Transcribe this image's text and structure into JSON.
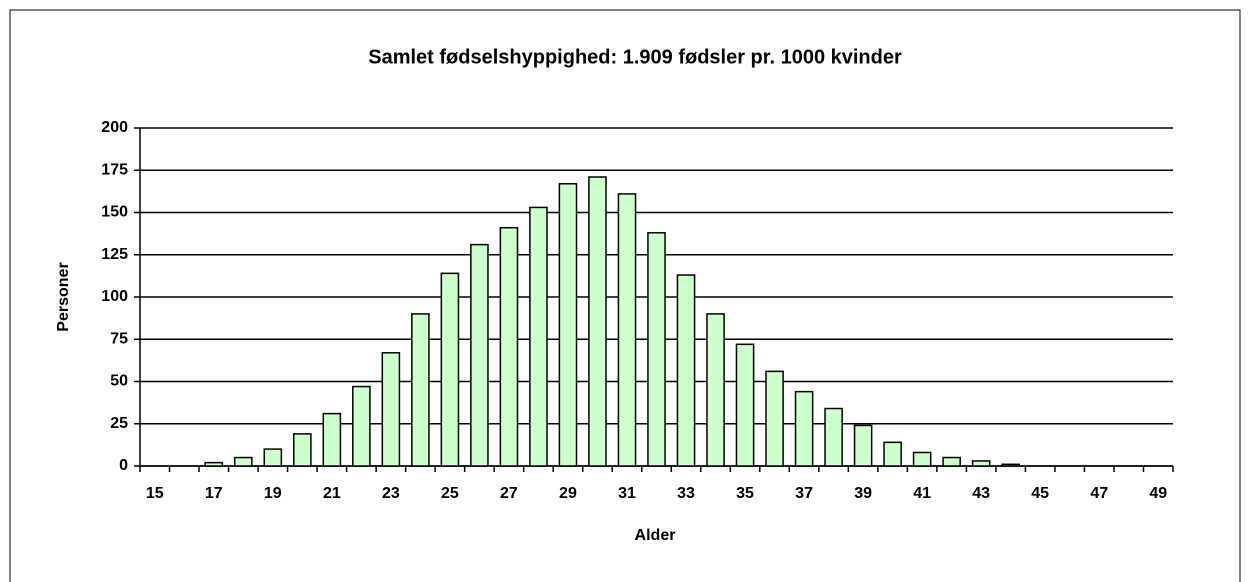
{
  "chart_data": {
    "type": "bar",
    "title": "Samlet fødselshyppighed: 1.909 fødsler pr. 1000 kvinder",
    "x_label": "Alder",
    "y_label": "Personer",
    "categories": [
      15,
      null,
      17,
      null,
      19,
      null,
      21,
      null,
      23,
      null,
      25,
      null,
      27,
      null,
      29,
      null,
      31,
      null,
      33,
      null,
      35,
      null,
      37,
      null,
      39,
      null,
      41,
      null,
      43,
      null,
      45,
      null,
      47,
      null,
      49
    ],
    "values": [
      0,
      0,
      2,
      5,
      10,
      19,
      31,
      47,
      67,
      90,
      114,
      131,
      141,
      153,
      167,
      171,
      161,
      138,
      113,
      90,
      72,
      56,
      44,
      34,
      24,
      14,
      8,
      5,
      3,
      1,
      0,
      0,
      0,
      0,
      0
    ],
    "color": "#ccffcc",
    "ylim": [
      0,
      200
    ],
    "yticks": [
      0,
      25,
      50,
      75,
      100,
      125,
      150,
      175,
      200
    ],
    "grid": true
  }
}
